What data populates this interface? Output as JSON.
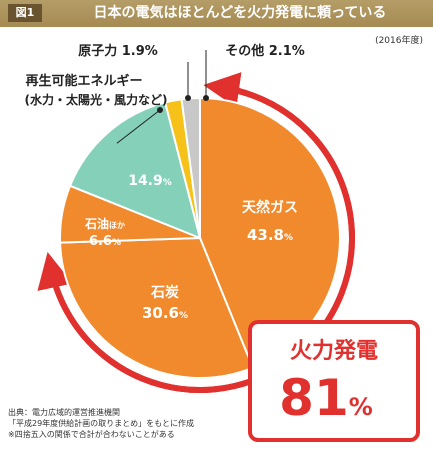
{
  "header": {
    "fig_label": "図1",
    "title": "日本の電気はほとんどを火力発電に頼っている"
  },
  "year_note": "(2016年度)",
  "chart_data": {
    "type": "pie",
    "unit": "%",
    "slices": [
      {
        "label": "天然ガス",
        "sub": "",
        "value": 43.8,
        "value_text": "43.8",
        "color": "#f08a2c"
      },
      {
        "label": "石炭",
        "sub": "",
        "value": 30.6,
        "value_text": "30.6",
        "color": "#f08a2c"
      },
      {
        "label": "石油",
        "sub": "ほか",
        "value": 6.6,
        "value_text": "6.6",
        "color": "#f08a2c"
      },
      {
        "label": "再生可能エネルギー",
        "sub": "(水力・太陽光・風力など)",
        "value": 14.9,
        "value_text": "14.9",
        "color": "#84d0b8"
      },
      {
        "label": "原子力",
        "sub": "",
        "value": 1.9,
        "value_text": "1.9",
        "color": "#f6c21a"
      },
      {
        "label": "その他",
        "sub": "",
        "value": 2.1,
        "value_text": "2.1",
        "color": "#c8c8c8"
      }
    ],
    "callout": {
      "label": "火力発電",
      "value": "81",
      "unit": "%"
    },
    "accent_color": "#e0312e"
  },
  "source": {
    "line1": "出典：電力広域的運営推進機関",
    "line2": "「平成29年度供給計画の取りまとめ」をもとに作成",
    "line3": "※四捨五入の関係で合計が合わないことがある"
  }
}
